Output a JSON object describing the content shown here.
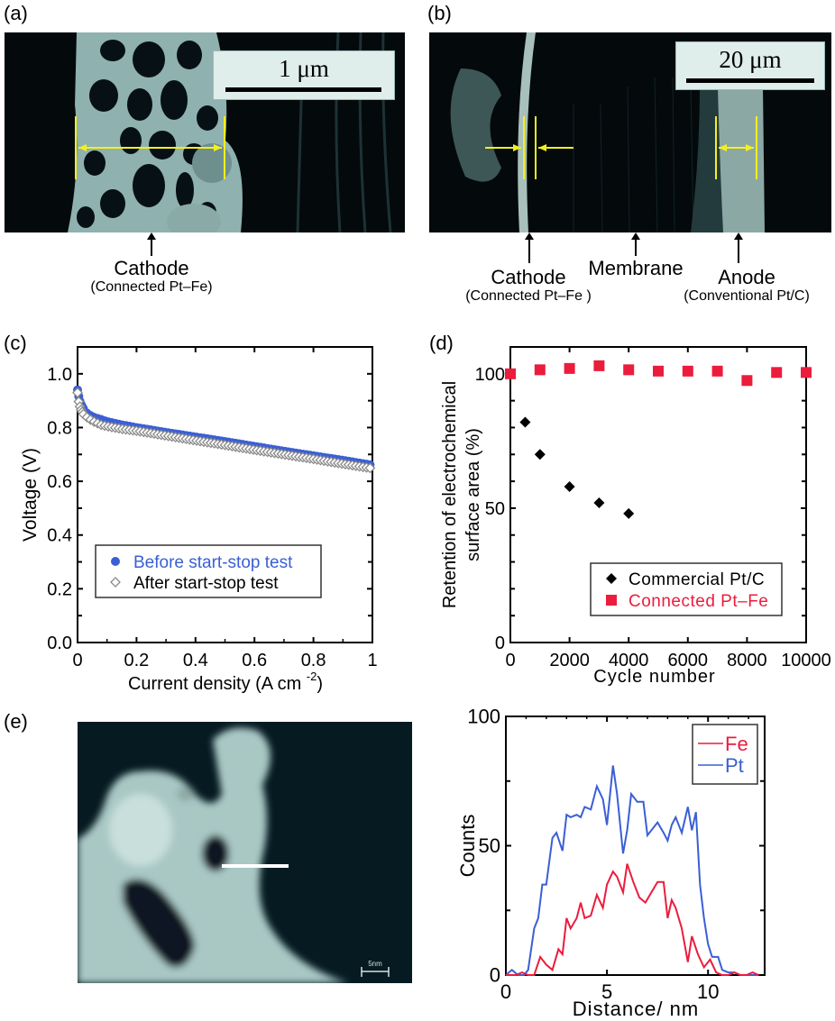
{
  "panels": {
    "a": {
      "label": "(a)",
      "scale_bar": "1 μm",
      "callout": {
        "main": "Cathode",
        "sub": "(Connected Pt–Fe)"
      }
    },
    "b": {
      "label": "(b)",
      "scale_bar": "20 μm",
      "callouts": [
        {
          "main": "Cathode",
          "sub": "(Connected Pt–Fe )"
        },
        {
          "main": "Membrane",
          "sub": ""
        },
        {
          "main": "Anode",
          "sub": "(Conventional Pt/C)"
        }
      ]
    },
    "c": {
      "label": "(c)"
    },
    "d": {
      "label": "(d)"
    },
    "e": {
      "label": "(e)",
      "scale_bar": "5nm"
    }
  },
  "colors": {
    "blue": "#3a5fd6",
    "red": "#ec1c3c",
    "black": "#000000",
    "gray_open": "#8a8a8a",
    "yellow": "#f4f01e"
  },
  "chart_data": [
    {
      "id": "c",
      "type": "scatter",
      "title": "",
      "xlabel": "Current density (A cm",
      "xlabel_sup": "-2",
      "xlabel_tail": ")",
      "ylabel": "Voltage (V)",
      "xlim": [
        0,
        1
      ],
      "ylim": [
        0,
        1.1
      ],
      "xticks": [
        "0",
        "0.2",
        "0.4",
        "0.6",
        "0.8",
        "1"
      ],
      "yticks": [
        "0.0",
        "0.2",
        "0.4",
        "0.6",
        "0.8",
        "1.0"
      ],
      "grid": false,
      "legend_position": "lower-left inside",
      "series": [
        {
          "name": "Before start-stop test",
          "marker": "filled-circle",
          "color": "#3a5fd6",
          "x": [
            0,
            0.002,
            0.005,
            0.01,
            0.02,
            0.03,
            0.05,
            0.08,
            0.1,
            0.15,
            0.2,
            0.3,
            0.4,
            0.5,
            0.6,
            0.7,
            0.8,
            0.9,
            1.0
          ],
          "y": [
            0.94,
            0.93,
            0.91,
            0.89,
            0.87,
            0.855,
            0.84,
            0.83,
            0.822,
            0.81,
            0.8,
            0.782,
            0.765,
            0.748,
            0.73,
            0.712,
            0.695,
            0.678,
            0.66
          ]
        },
        {
          "name": "After start-stop test",
          "marker": "open-diamond",
          "color": "#8a8a8a",
          "x": [
            0,
            0.002,
            0.005,
            0.01,
            0.02,
            0.03,
            0.05,
            0.08,
            0.1,
            0.15,
            0.2,
            0.3,
            0.4,
            0.5,
            0.6,
            0.7,
            0.8,
            0.9,
            1.0
          ],
          "y": [
            0.93,
            0.91,
            0.89,
            0.87,
            0.85,
            0.84,
            0.825,
            0.81,
            0.805,
            0.795,
            0.788,
            0.77,
            0.752,
            0.735,
            0.717,
            0.7,
            0.683,
            0.665,
            0.648
          ]
        }
      ]
    },
    {
      "id": "d",
      "type": "scatter",
      "title": "",
      "xlabel": "Cycle number",
      "ylabel": "Retention of electrochemical",
      "ylabel2": "surface area (%)",
      "xlim": [
        0,
        10000
      ],
      "ylim": [
        0,
        110
      ],
      "xticks": [
        "0",
        "2000",
        "4000",
        "6000",
        "8000",
        "10000"
      ],
      "yticks": [
        "0",
        "50",
        "100"
      ],
      "grid": false,
      "legend_position": "lower-right inside",
      "series": [
        {
          "name": "Commercial Pt/C",
          "marker": "filled-diamond",
          "color": "#000000",
          "x": [
            500,
            1000,
            2000,
            3000,
            4000
          ],
          "y": [
            82,
            70,
            58,
            52,
            48
          ]
        },
        {
          "name": "Connected Pt–Fe",
          "marker": "filled-square",
          "color": "#ec1c3c",
          "x": [
            0,
            1000,
            2000,
            3000,
            4000,
            5000,
            6000,
            7000,
            8000,
            9000,
            10000
          ],
          "y": [
            100,
            101.5,
            102,
            103,
            101.5,
            101,
            101,
            101,
            97.5,
            100.5,
            100.5
          ]
        }
      ]
    },
    {
      "id": "e",
      "type": "line",
      "title": "",
      "xlabel": "Distance/ nm",
      "ylabel": "Counts",
      "xlim": [
        0,
        12.8
      ],
      "ylim": [
        0,
        100
      ],
      "xticks": [
        "0",
        "5",
        "10"
      ],
      "yticks": [
        "0",
        "50",
        "100"
      ],
      "grid": false,
      "legend_position": "upper-right inside",
      "series": [
        {
          "name": "Fe",
          "color": "#ec1c3c",
          "x": [
            0,
            0.5,
            0.8,
            1.1,
            1.4,
            1.7,
            2.0,
            2.3,
            2.6,
            2.8,
            3.0,
            3.2,
            3.5,
            3.7,
            3.9,
            4.2,
            4.5,
            4.8,
            5.0,
            5.3,
            5.5,
            5.8,
            6.0,
            6.3,
            6.6,
            6.9,
            7.2,
            7.5,
            7.8,
            8.0,
            8.2,
            8.4,
            8.7,
            9.0,
            9.2,
            9.5,
            9.8,
            10.1,
            10.4,
            10.7,
            11.0,
            11.3,
            11.6,
            11.9,
            12.2,
            12.5
          ],
          "y": [
            0,
            0,
            1,
            0,
            0,
            7,
            4,
            2,
            10,
            8,
            22,
            18,
            22,
            28,
            22,
            23,
            31,
            26,
            35,
            40,
            38,
            32,
            43,
            36,
            30,
            28,
            32,
            36,
            36,
            22,
            29,
            26,
            18,
            5,
            15,
            8,
            3,
            6,
            1,
            0,
            0,
            1,
            0,
            0,
            1,
            0
          ]
        },
        {
          "name": "Pt",
          "color": "#3a5fd6",
          "x": [
            0,
            0.3,
            0.6,
            0.9,
            1.1,
            1.4,
            1.6,
            1.8,
            2.0,
            2.3,
            2.5,
            2.8,
            3.0,
            3.2,
            3.5,
            3.7,
            3.9,
            4.2,
            4.5,
            4.8,
            5.0,
            5.3,
            5.5,
            5.8,
            6.0,
            6.2,
            6.5,
            6.8,
            7.0,
            7.2,
            7.5,
            7.8,
            8.0,
            8.2,
            8.4,
            8.7,
            9.0,
            9.2,
            9.4,
            9.6,
            9.8,
            10.0,
            10.2,
            10.5,
            10.7,
            11.0,
            11.3,
            11.6,
            11.9,
            12.2,
            12.5
          ],
          "y": [
            0,
            2,
            0,
            0,
            2,
            18,
            22,
            35,
            35,
            53,
            55,
            48,
            62,
            61,
            62,
            61,
            65,
            64,
            73,
            68,
            58,
            81,
            70,
            47,
            56,
            70,
            67,
            67,
            54,
            56,
            59,
            55,
            52,
            58,
            61,
            55,
            65,
            56,
            63,
            35,
            22,
            12,
            7,
            7,
            2,
            1,
            1,
            0,
            0,
            0,
            0
          ]
        }
      ]
    }
  ]
}
